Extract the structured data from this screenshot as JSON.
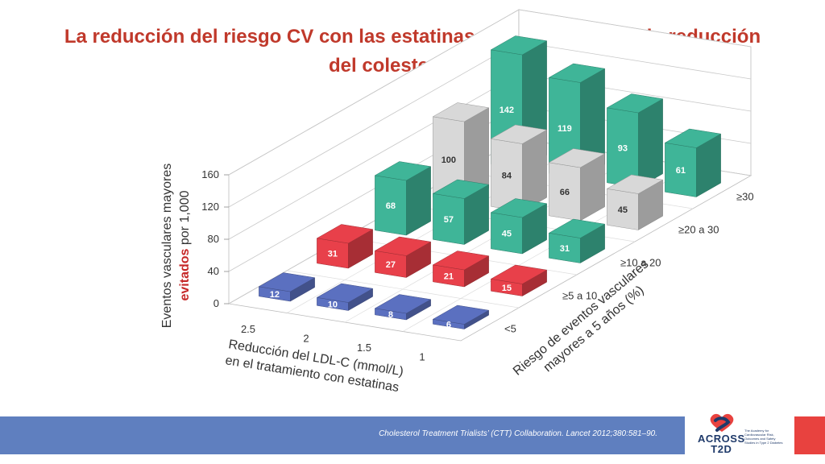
{
  "title": {
    "line1": "La reducción del riesgo CV con las estatinas es proporcional a la reducción",
    "line2": "del colesterol LDL"
  },
  "chart_data": {
    "type": "bar",
    "subtype": "3d-bar",
    "x_categories": [
      "2.5",
      "2",
      "1.5",
      "1"
    ],
    "y_categories": [
      "<5",
      "≥5 a 10",
      "≥10 a 20",
      "≥20 a 30",
      "≥30"
    ],
    "values": [
      [
        12,
        31,
        68,
        100,
        142
      ],
      [
        10,
        27,
        57,
        84,
        119
      ],
      [
        8,
        21,
        45,
        66,
        93
      ],
      [
        6,
        15,
        31,
        45,
        61
      ]
    ],
    "series_colors": [
      "#5b70c0",
      "#e8404a",
      "#3fb598",
      "#d8d8d8",
      "#3fb598"
    ],
    "zlim": [
      0,
      160
    ],
    "z_ticks": [
      "0",
      "40",
      "80",
      "120",
      "160"
    ],
    "zlabel_line1": "Eventos vasculares mayores",
    "zlabel_line2_bold": "evitados",
    "zlabel_line2_rest": " por 1,000",
    "xlabel_line1": "Reducción del LDL-C (mmol/L)",
    "xlabel_line2": "en el tratamiento con estatinas",
    "ylabel_line1": "Riesgo de eventos vasculares",
    "ylabel_line2": "mayores a 5 años (%)",
    "grid": true
  },
  "footer": {
    "citation": "Cholesterol Treatment Trialists’ (CTT) Collaboration. Lancet 2012;380:581–90.",
    "colors": {
      "bar": "#5f7fbf",
      "accent": "#e8423f"
    }
  },
  "logo": {
    "line1": "ACROSS",
    "line2": "T2D",
    "tagline": "The Academy for Cardiovascular Risk, Outcomes and Safety Studies in Type 2 Diabetes"
  }
}
